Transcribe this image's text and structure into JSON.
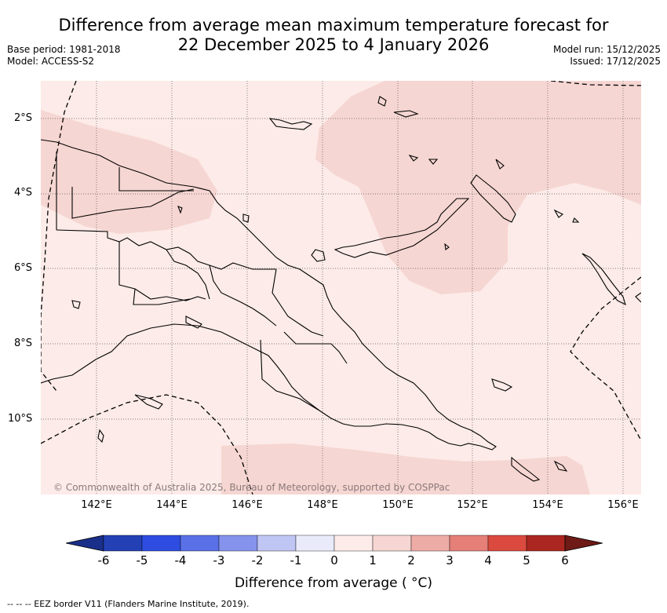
{
  "title": {
    "line1": "Difference from average mean maximum temperature forecast for",
    "line2": "22 December 2025 to 4 January 2026"
  },
  "meta_left": {
    "base_period": "Base period: 1981-2018",
    "model": "Model: ACCESS-S2"
  },
  "meta_right": {
    "model_run": "Model run: 15/12/2025",
    "issued": "Issued: 17/12/2025"
  },
  "map": {
    "lat_labels": [
      "2°S",
      "4°S",
      "6°S",
      "8°S",
      "10°S"
    ],
    "lon_labels": [
      "142°E",
      "144°E",
      "146°E",
      "148°E",
      "150°E",
      "152°E",
      "154°E",
      "156°E"
    ],
    "copyright": "© Commonwealth of Australia 2025, Bureau of Meteorology, supported by COSPPac",
    "colors": {
      "anomaly_0_1": "#fcebe8",
      "anomaly_1_2": "#f6d6d2",
      "land_outline": "#000000",
      "gridline": "#555555"
    }
  },
  "colorbar": {
    "ticks": [
      "-6",
      "-5",
      "-4",
      "-3",
      "-2",
      "-1",
      "0",
      "1",
      "2",
      "3",
      "4",
      "5",
      "6"
    ],
    "colors": [
      "#1a2f8a",
      "#2440b5",
      "#2e4de0",
      "#5a70e6",
      "#8593ec",
      "#c0c6f3",
      "#e9ebfa",
      "#fcebe8",
      "#f6d6d2",
      "#eeaca6",
      "#e57f77",
      "#da4a3f",
      "#ab2620",
      "#6e1a16"
    ],
    "label": "Difference from average ( °C)"
  },
  "footer": {
    "eez": "--  --  -- EEZ border V11 (Flanders Marine Institute, 2019)."
  }
}
